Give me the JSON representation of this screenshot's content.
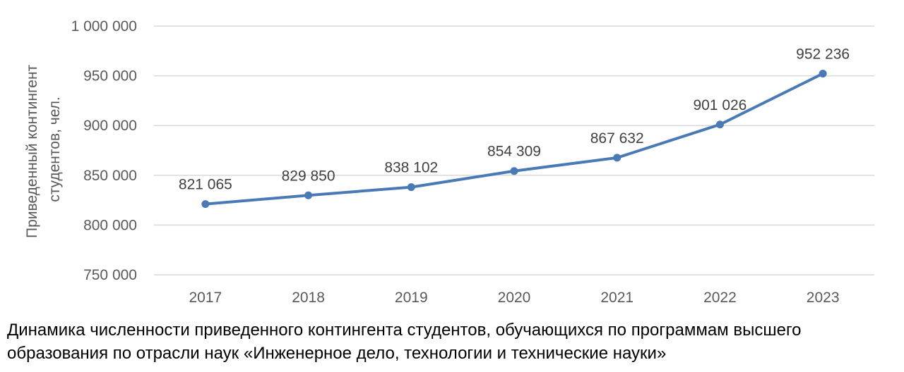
{
  "chart_data": {
    "type": "line",
    "x": [
      "2017",
      "2018",
      "2019",
      "2020",
      "2021",
      "2022",
      "2023"
    ],
    "series": [
      {
        "values": [
          821065,
          829850,
          838102,
          854309,
          867632,
          901026,
          952236
        ],
        "data_labels": [
          "821 065",
          "829 850",
          "838 102",
          "854 309",
          "867 632",
          "901 026",
          "952 236"
        ]
      }
    ],
    "ylabel": [
      "Приведенный контингент",
      "студентов, чел."
    ],
    "ylim": [
      750000,
      1000000
    ],
    "yticks": [
      750000,
      800000,
      850000,
      900000,
      950000,
      1000000
    ],
    "ytick_labels": [
      "750 000",
      "800 000",
      "850 000",
      "900 000",
      "950 000",
      "1 000 000"
    ],
    "grid": "horizontal",
    "line_color": "#4a7ab5",
    "grid_color": "#d9d9d9"
  },
  "caption": {
    "line1": "Динамика численности приведенного контингента студентов, обучающихся по программам высшего",
    "line2": "образования по отрасли наук «Инженерное дело, технологии и технические науки»"
  }
}
